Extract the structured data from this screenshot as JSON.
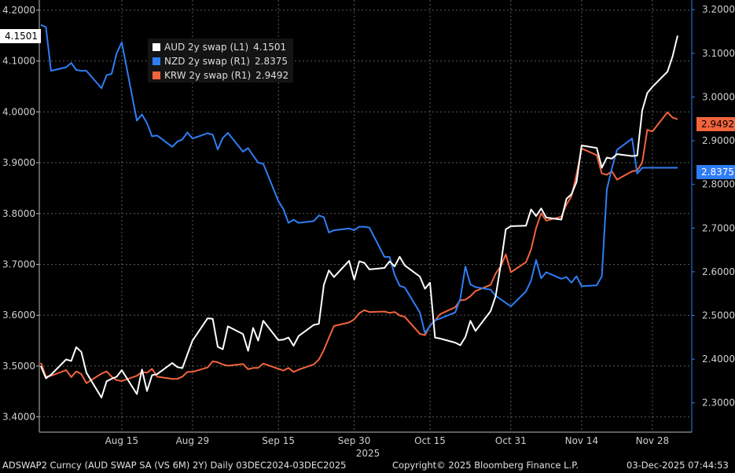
{
  "chart_data": {
    "type": "line",
    "x_ticks": [
      "Aug 15",
      "Aug 29",
      "Sep 15",
      "Sep 30",
      "Oct 15",
      "Oct 31",
      "Nov 14",
      "Nov 28"
    ],
    "year_label": "2025",
    "left_axis": {
      "ticks": [
        "3.4000",
        "3.5000",
        "3.6000",
        "3.7000",
        "3.8000",
        "3.9000",
        "4.0000",
        "4.1000",
        "4.2000"
      ],
      "ylim": [
        3.37,
        4.22
      ]
    },
    "right_axis": {
      "ticks": [
        "2.3000",
        "2.4000",
        "2.5000",
        "2.6000",
        "2.7000",
        "2.8000",
        "2.9000",
        "3.0000",
        "3.1000",
        "3.2000"
      ],
      "ylim": [
        2.233,
        3.222
      ]
    },
    "legend_placement": "top-left",
    "series": [
      {
        "name": "AUD 2y swap (L1)",
        "last_value": "4.1501",
        "axis": "left",
        "color": "#ffffff",
        "dates": [
          "Jul 30",
          "Jul 31",
          "Aug 1",
          "Aug 4",
          "Aug 5",
          "Aug 6",
          "Aug 7",
          "Aug 8",
          "Aug 11",
          "Aug 12",
          "Aug 13",
          "Aug 14",
          "Aug 15",
          "Aug 18",
          "Aug 19",
          "Aug 20",
          "Aug 21",
          "Aug 22",
          "Aug 25",
          "Aug 26",
          "Aug 27",
          "Aug 28",
          "Aug 29",
          "Sep 1",
          "Sep 2",
          "Sep 3",
          "Sep 4",
          "Sep 5",
          "Sep 8",
          "Sep 9",
          "Sep 10",
          "Sep 11",
          "Sep 12",
          "Sep 15",
          "Sep 16",
          "Sep 17",
          "Sep 18",
          "Sep 19",
          "Sep 22",
          "Sep 23",
          "Sep 24",
          "Sep 25",
          "Sep 26",
          "Sep 29",
          "Sep 30",
          "Oct 1",
          "Oct 2",
          "Oct 3",
          "Oct 6",
          "Oct 7",
          "Oct 8",
          "Oct 9",
          "Oct 10",
          "Oct 13",
          "Oct 14",
          "Oct 15",
          "Oct 16",
          "Oct 17",
          "Oct 20",
          "Oct 21",
          "Oct 22",
          "Oct 23",
          "Oct 24",
          "Oct 27",
          "Oct 28",
          "Oct 29",
          "Oct 30",
          "Oct 31",
          "Nov 3",
          "Nov 4",
          "Nov 5",
          "Nov 6",
          "Nov 7",
          "Nov 10",
          "Nov 11",
          "Nov 12",
          "Nov 13",
          "Nov 14",
          "Nov 17",
          "Nov 18",
          "Nov 19",
          "Nov 20",
          "Nov 21",
          "Nov 24",
          "Nov 25",
          "Nov 26",
          "Nov 27",
          "Nov 28",
          "Dec 1",
          "Dec 2",
          "Dec 3"
        ],
        "values": [
          3.5,
          3.476,
          3.483,
          3.513,
          3.51,
          3.537,
          3.528,
          3.487,
          3.438,
          3.47,
          3.475,
          3.479,
          3.492,
          3.445,
          3.493,
          3.451,
          3.482,
          3.484,
          3.506,
          3.498,
          3.496,
          3.523,
          3.55,
          3.594,
          3.593,
          3.538,
          3.533,
          3.578,
          3.563,
          3.53,
          3.575,
          3.55,
          3.589,
          3.551,
          3.552,
          3.556,
          3.54,
          3.559,
          3.581,
          3.583,
          3.66,
          3.688,
          3.675,
          3.707,
          3.67,
          3.706,
          3.703,
          3.69,
          3.693,
          3.706,
          3.696,
          3.715,
          3.698,
          3.676,
          3.652,
          3.664,
          3.556,
          3.554,
          3.546,
          3.541,
          3.557,
          3.589,
          3.569,
          3.608,
          3.638,
          3.699,
          3.769,
          3.775,
          3.776,
          3.808,
          3.795,
          3.81,
          3.792,
          3.788,
          3.829,
          3.838,
          3.862,
          3.934,
          3.929,
          3.89,
          3.91,
          3.908,
          3.917,
          3.913,
          3.914,
          4.003,
          4.037,
          4.049,
          4.079,
          4.109,
          4.15
        ]
      },
      {
        "name": "NZD 2y swap (R1)",
        "last_value": "2.8375",
        "axis": "right",
        "color": "#2f7df6",
        "dates": [
          "Jul 30",
          "Jul 31",
          "Aug 1",
          "Aug 4",
          "Aug 5",
          "Aug 6",
          "Aug 7",
          "Aug 8",
          "Aug 11",
          "Aug 12",
          "Aug 13",
          "Aug 14",
          "Aug 15",
          "Aug 18",
          "Aug 19",
          "Aug 20",
          "Aug 21",
          "Aug 22",
          "Aug 25",
          "Aug 26",
          "Aug 27",
          "Aug 28",
          "Aug 29",
          "Sep 1",
          "Sep 2",
          "Sep 3",
          "Sep 4",
          "Sep 5",
          "Sep 8",
          "Sep 9",
          "Sep 10",
          "Sep 11",
          "Sep 12",
          "Sep 15",
          "Sep 16",
          "Sep 17",
          "Sep 18",
          "Sep 19",
          "Sep 22",
          "Sep 23",
          "Sep 24",
          "Sep 25",
          "Sep 26",
          "Sep 29",
          "Sep 30",
          "Oct 1",
          "Oct 2",
          "Oct 3",
          "Oct 6",
          "Oct 7",
          "Oct 8",
          "Oct 9",
          "Oct 10",
          "Oct 13",
          "Oct 14",
          "Oct 15",
          "Oct 16",
          "Oct 17",
          "Oct 20",
          "Oct 21",
          "Oct 22",
          "Oct 23",
          "Oct 24",
          "Oct 27",
          "Oct 28",
          "Oct 29",
          "Oct 30",
          "Oct 31",
          "Nov 3",
          "Nov 4",
          "Nov 5",
          "Nov 6",
          "Nov 7",
          "Nov 10",
          "Nov 11",
          "Nov 12",
          "Nov 13",
          "Nov 14",
          "Nov 17",
          "Nov 18",
          "Nov 19",
          "Nov 20",
          "Nov 21",
          "Nov 24",
          "Nov 25",
          "Nov 26",
          "Nov 27",
          "Nov 28",
          "Dec 1",
          "Dec 2",
          "Dec 3"
        ],
        "values": [
          3.165,
          3.16,
          3.06,
          3.068,
          3.078,
          3.062,
          3.06,
          3.06,
          3.02,
          3.05,
          3.053,
          3.1,
          3.125,
          2.946,
          2.96,
          2.94,
          2.91,
          2.912,
          2.886,
          2.898,
          2.903,
          2.919,
          2.905,
          2.917,
          2.914,
          2.88,
          2.906,
          2.918,
          2.875,
          2.883,
          2.866,
          2.85,
          2.847,
          2.762,
          2.743,
          2.712,
          2.719,
          2.712,
          2.716,
          2.729,
          2.725,
          2.69,
          2.695,
          2.699,
          2.695,
          2.703,
          2.703,
          2.701,
          2.634,
          2.634,
          2.593,
          2.568,
          2.564,
          2.507,
          2.46,
          2.476,
          2.489,
          2.493,
          2.507,
          2.539,
          2.612,
          2.571,
          2.565,
          2.559,
          2.545,
          2.537,
          2.529,
          2.521,
          2.555,
          2.58,
          2.627,
          2.585,
          2.599,
          2.584,
          2.588,
          2.575,
          2.59,
          2.567,
          2.569,
          2.59,
          2.789,
          2.837,
          2.879,
          2.905,
          2.825,
          2.838,
          2.838,
          2.838,
          2.838,
          2.838,
          2.838
        ]
      },
      {
        "name": "KRW 2y swap (R1)",
        "last_value": "2.9492",
        "axis": "right",
        "color": "#f2643c",
        "dates": [
          "Jul 30",
          "Jul 31",
          "Aug 1",
          "Aug 4",
          "Aug 5",
          "Aug 6",
          "Aug 7",
          "Aug 8",
          "Aug 11",
          "Aug 12",
          "Aug 13",
          "Aug 14",
          "Aug 15",
          "Aug 18",
          "Aug 19",
          "Aug 20",
          "Aug 21",
          "Aug 22",
          "Aug 25",
          "Aug 26",
          "Aug 27",
          "Aug 28",
          "Aug 29",
          "Sep 1",
          "Sep 2",
          "Sep 3",
          "Sep 4",
          "Sep 5",
          "Sep 8",
          "Sep 9",
          "Sep 10",
          "Sep 11",
          "Sep 12",
          "Sep 15",
          "Sep 16",
          "Sep 17",
          "Sep 18",
          "Sep 19",
          "Sep 22",
          "Sep 23",
          "Sep 24",
          "Sep 25",
          "Sep 26",
          "Sep 29",
          "Sep 30",
          "Oct 1",
          "Oct 2",
          "Oct 3",
          "Oct 6",
          "Oct 7",
          "Oct 8",
          "Oct 9",
          "Oct 10",
          "Oct 13",
          "Oct 14",
          "Oct 15",
          "Oct 16",
          "Oct 17",
          "Oct 20",
          "Oct 21",
          "Oct 22",
          "Oct 23",
          "Oct 24",
          "Oct 27",
          "Oct 28",
          "Oct 29",
          "Oct 30",
          "Oct 31",
          "Nov 3",
          "Nov 4",
          "Nov 5",
          "Nov 6",
          "Nov 7",
          "Nov 10",
          "Nov 11",
          "Nov 12",
          "Nov 13",
          "Nov 14",
          "Nov 17",
          "Nov 18",
          "Nov 19",
          "Nov 20",
          "Nov 21",
          "Nov 24",
          "Nov 25",
          "Nov 26",
          "Nov 27",
          "Nov 28",
          "Dec 1",
          "Dec 2",
          "Dec 3"
        ],
        "values": [
          2.392,
          2.36,
          2.362,
          2.375,
          2.359,
          2.372,
          2.366,
          2.345,
          2.367,
          2.372,
          2.36,
          2.352,
          2.35,
          2.362,
          2.371,
          2.369,
          2.378,
          2.36,
          2.355,
          2.355,
          2.36,
          2.371,
          2.371,
          2.381,
          2.395,
          2.393,
          2.388,
          2.385,
          2.389,
          2.377,
          2.38,
          2.38,
          2.39,
          2.378,
          2.374,
          2.38,
          2.371,
          2.376,
          2.388,
          2.399,
          2.421,
          2.449,
          2.476,
          2.484,
          2.491,
          2.505,
          2.512,
          2.508,
          2.509,
          2.506,
          2.508,
          2.5,
          2.497,
          2.458,
          2.455,
          2.477,
          2.488,
          2.503,
          2.519,
          2.535,
          2.536,
          2.544,
          2.556,
          2.57,
          2.596,
          2.612,
          2.64,
          2.599,
          2.622,
          2.651,
          2.7,
          2.734,
          2.717,
          2.726,
          2.754,
          2.773,
          2.823,
          2.882,
          2.867,
          2.825,
          2.822,
          2.83,
          2.811,
          2.83,
          2.832,
          2.85,
          2.925,
          2.921,
          2.965,
          2.953,
          2.949
        ]
      }
    ]
  },
  "footer": {
    "left": "ADSWAP2 Curncy (AUD SWAP SA (VS 6M) 2Y) Daily 03DEC2024-03DEC2025",
    "center": "Copyright© 2025 Bloomberg Finance L.P.",
    "right": "03-Dec-2025 07:44:53"
  }
}
